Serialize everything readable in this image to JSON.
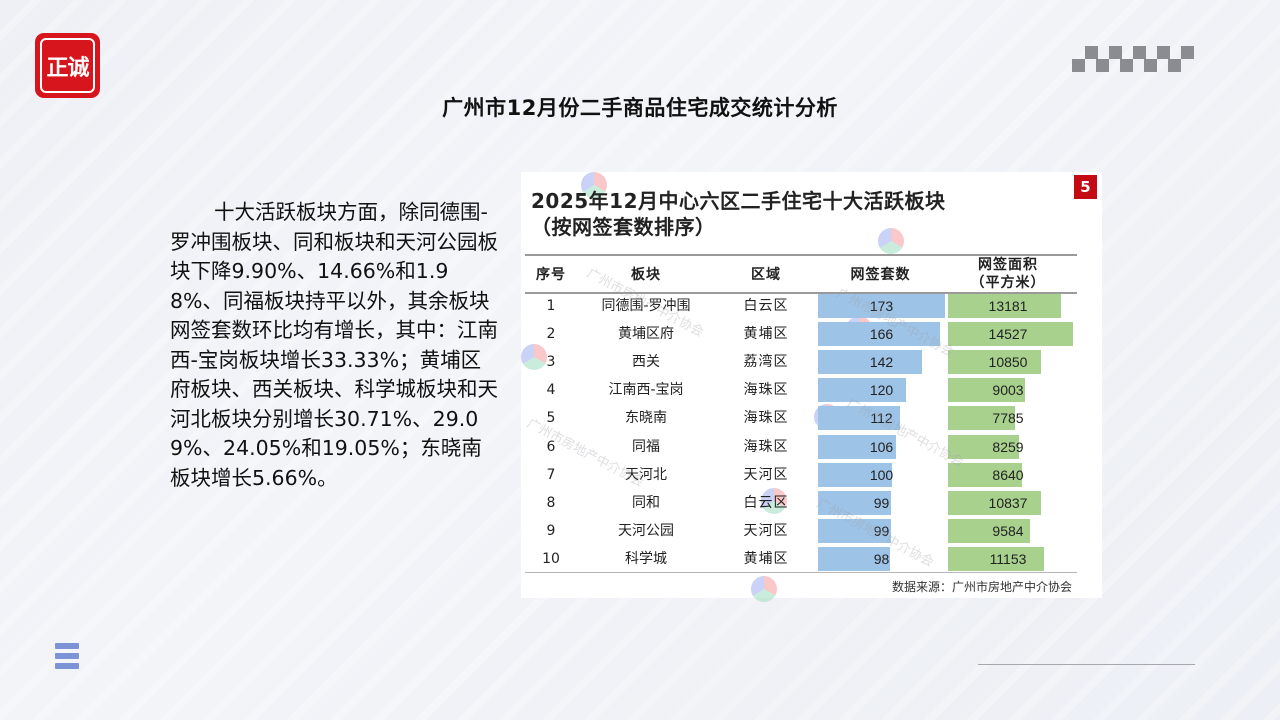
{
  "brand": {
    "logo_text": "正诚",
    "logo_color": "#d7151c"
  },
  "page": {
    "title": "广州市12月份二手商品住宅成交统计分析",
    "body_text": "十大活跃板块方面，除同德围-罗冲围板块、同和板块和天河公园板块下降9.90%、14.66%和1.98%、同福板块持平以外，其余板块网签套数环比均有增长，其中：江南西-宝岗板块增长33.33%；黄埔区府板块、西关板块、科学城板块和天河北板块分别增长30.71%、29.09%、24.05%和19.05%；东晓南板块增长5.66%。"
  },
  "table_image": {
    "title_line1": "2025年12月中心六区二手住宅十大活跃板块",
    "title_line2": "（按网签套数排序）",
    "page_badge": "5",
    "headers": {
      "rank": "序号",
      "block": "板块",
      "district": "区域",
      "units": "网签套数",
      "area_line1": "网签面积",
      "area_line2": "（平方米）"
    },
    "rows": [
      {
        "rank": "1",
        "block": "同德围-罗冲围",
        "district": "白云区",
        "units": "173",
        "area": "13181"
      },
      {
        "rank": "2",
        "block": "黄埔区府",
        "district": "黄埔区",
        "units": "166",
        "area": "14527"
      },
      {
        "rank": "3",
        "block": "西关",
        "district": "荔湾区",
        "units": "142",
        "area": "10850"
      },
      {
        "rank": "4",
        "block": "江南西-宝岗",
        "district": "海珠区",
        "units": "120",
        "area": "9003"
      },
      {
        "rank": "5",
        "block": "东晓南",
        "district": "海珠区",
        "units": "112",
        "area": "7785"
      },
      {
        "rank": "6",
        "block": "同福",
        "district": "海珠区",
        "units": "106",
        "area": "8259"
      },
      {
        "rank": "7",
        "block": "天河北",
        "district": "天河区",
        "units": "100",
        "area": "8640"
      },
      {
        "rank": "8",
        "block": "同和",
        "district": "白云区",
        "units": "99",
        "area": "10837"
      },
      {
        "rank": "9",
        "block": "天河公园",
        "district": "天河区",
        "units": "99",
        "area": "9584"
      },
      {
        "rank": "10",
        "block": "科学城",
        "district": "黄埔区",
        "units": "98",
        "area": "11153"
      }
    ],
    "source": "数据来源：广州市房地产中介协会",
    "watermark_text": "广州市房地产中介协会",
    "colors": {
      "units_bar": "#9dc3e6",
      "area_bar": "#a9d18e",
      "badge": "#c40a12"
    }
  },
  "chart_data": {
    "type": "table",
    "title": "2025年12月中心六区二手住宅十大活跃板块（按网签套数排序）",
    "columns": [
      "序号",
      "板块",
      "区域",
      "网签套数",
      "网签面积（平方米）"
    ],
    "categories": [
      "同德围-罗冲围",
      "黄埔区府",
      "西关",
      "江南西-宝岗",
      "东晓南",
      "同福",
      "天河北",
      "同和",
      "天河公园",
      "科学城"
    ],
    "series": [
      {
        "name": "网签套数",
        "values": [
          173,
          166,
          142,
          120,
          112,
          106,
          100,
          99,
          99,
          98
        ]
      },
      {
        "name": "网签面积（平方米）",
        "values": [
          13181,
          14527,
          10850,
          9003,
          7785,
          8259,
          8640,
          10837,
          9584,
          11153
        ]
      }
    ],
    "districts": [
      "白云区",
      "黄埔区",
      "荔湾区",
      "海珠区",
      "海珠区",
      "海珠区",
      "天河区",
      "白云区",
      "天河区",
      "黄埔区"
    ],
    "source": "数据来源：广州市房地产中介协会"
  }
}
